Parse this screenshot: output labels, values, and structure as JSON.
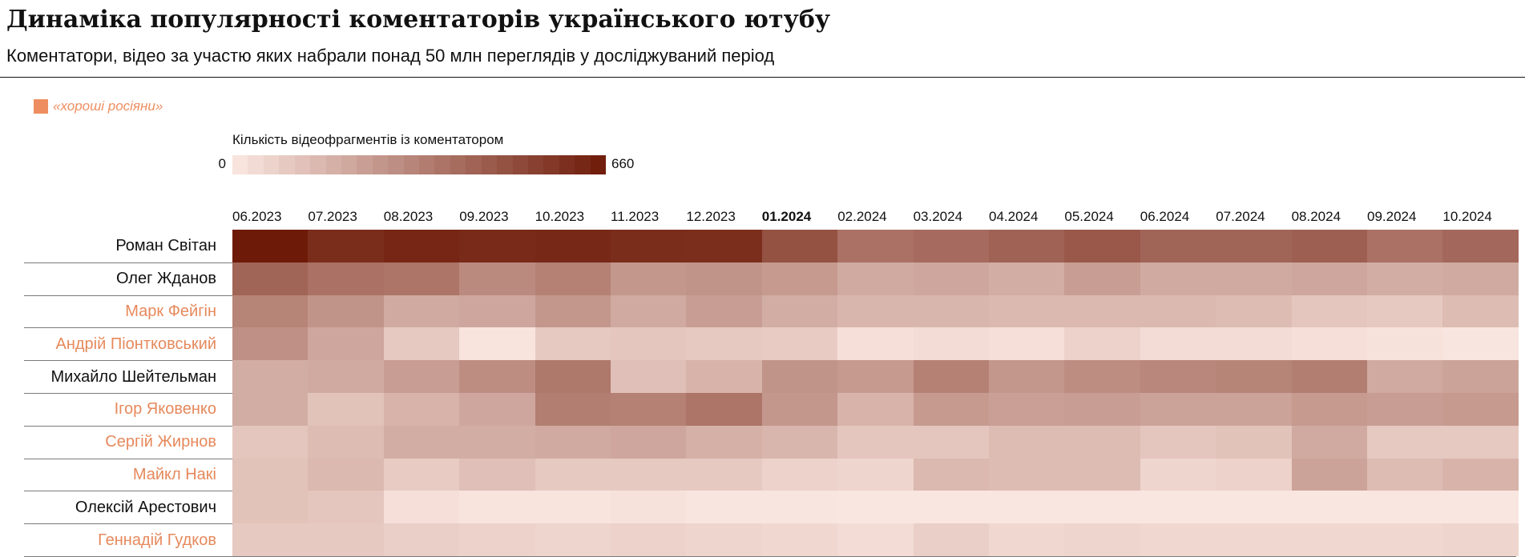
{
  "title": "Динаміка популярності коментаторів українського ютубу",
  "subtitle": "Коментатори, відео за участю яких набрали понад 50 млн переглядів у досліджуваний період",
  "legend": {
    "category_label": "«хороші росіяни»",
    "category_color": "#ee8e60",
    "scale_title": "Кількість відеофрагментів із коментатором",
    "scale_min": "0",
    "scale_max": "660",
    "scale_color_low": "#fbe8e2",
    "scale_color_high": "#6e1a08"
  },
  "colors": {
    "highlight": "#e6895c",
    "default": "#111111"
  },
  "chart_data": {
    "type": "heatmap",
    "title": "Динаміка популярності коментаторів українського ютубу",
    "subtitle": "Коментатори, відео за участю яких набрали понад 50 млн переглядів у досліджуваний період",
    "value_label": "Кількість відеофрагментів із коментатором",
    "range": [
      0,
      660
    ],
    "months": [
      "06.2023",
      "07.2023",
      "08.2023",
      "09.2023",
      "10.2023",
      "11.2023",
      "12.2023",
      "01.2024",
      "02.2024",
      "03.2024",
      "04.2024",
      "05.2024",
      "06.2024",
      "07.2024",
      "08.2024",
      "09.2024",
      "10.2024"
    ],
    "bold_month": "01.2024",
    "rows": [
      {
        "name": "Роман Світан",
        "highlight": false,
        "values": [
          660,
          600,
          620,
          610,
          615,
          600,
          595,
          480,
          380,
          400,
          430,
          460,
          420,
          420,
          440,
          380,
          410
        ]
      },
      {
        "name": "Олег Жданов",
        "highlight": false,
        "values": [
          420,
          380,
          370,
          300,
          330,
          260,
          270,
          250,
          200,
          210,
          190,
          240,
          200,
          200,
          210,
          190,
          200
        ]
      },
      {
        "name": "Марк Фейгін",
        "highlight": true,
        "values": [
          320,
          270,
          200,
          210,
          260,
          200,
          240,
          190,
          160,
          160,
          150,
          150,
          150,
          140,
          110,
          100,
          140
        ]
      },
      {
        "name": "Андрій Піонтковський",
        "highlight": true,
        "values": [
          280,
          210,
          100,
          15,
          100,
          110,
          100,
          90,
          30,
          40,
          30,
          70,
          40,
          40,
          30,
          20,
          10
        ]
      },
      {
        "name": "Михайло Шейтельман",
        "highlight": false,
        "values": [
          190,
          200,
          240,
          290,
          360,
          130,
          170,
          270,
          250,
          330,
          260,
          290,
          310,
          320,
          340,
          200,
          220
        ]
      },
      {
        "name": "Ігор Яковенко",
        "highlight": true,
        "values": [
          190,
          120,
          170,
          210,
          340,
          330,
          370,
          260,
          170,
          250,
          230,
          240,
          220,
          220,
          250,
          240,
          250
        ]
      },
      {
        "name": "Сергій Жирнов",
        "highlight": true,
        "values": [
          110,
          140,
          190,
          190,
          200,
          210,
          180,
          160,
          110,
          110,
          140,
          140,
          110,
          120,
          200,
          100,
          100
        ]
      },
      {
        "name": "Майкл Накі",
        "highlight": true,
        "values": [
          120,
          150,
          90,
          130,
          100,
          100,
          100,
          70,
          60,
          150,
          140,
          140,
          60,
          70,
          220,
          140,
          170
        ]
      },
      {
        "name": "Олексій Арестович",
        "highlight": false,
        "values": [
          120,
          110,
          30,
          15,
          15,
          20,
          10,
          10,
          5,
          5,
          5,
          5,
          5,
          5,
          5,
          5,
          5
        ]
      },
      {
        "name": "Геннадій Гудков",
        "highlight": true,
        "values": [
          100,
          100,
          80,
          70,
          60,
          70,
          60,
          50,
          40,
          80,
          50,
          60,
          50,
          50,
          50,
          50,
          60
        ]
      }
    ]
  }
}
